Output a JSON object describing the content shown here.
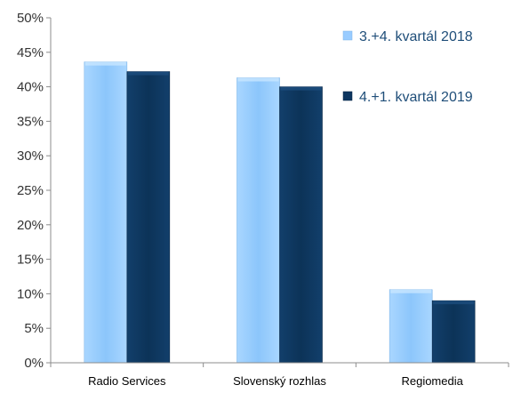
{
  "chart_data": {
    "type": "bar",
    "categories": [
      "Radio Services",
      "Slovenský rozhlas",
      "Regiomedia"
    ],
    "series": [
      {
        "name": "3.+4. kvartál 2018",
        "values": [
          43.6,
          41.3,
          10.6
        ],
        "color": "#99ccff"
      },
      {
        "name": "4.+1. kvartál 2019",
        "values": [
          42.2,
          40.0,
          9.0
        ],
        "color": "#0d3660"
      }
    ],
    "y_ticks": [
      "0%",
      "5%",
      "10%",
      "15%",
      "20%",
      "25%",
      "30%",
      "35%",
      "40%",
      "45%",
      "50%"
    ],
    "ylim": [
      0,
      50
    ],
    "title": "",
    "xlabel": "",
    "ylabel": "",
    "legend_position": "top-right",
    "grid": false
  }
}
